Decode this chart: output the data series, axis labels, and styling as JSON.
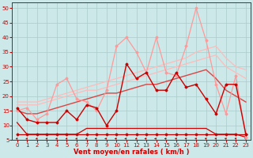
{
  "bg_color": "#cce8e8",
  "grid_color": "#aacccc",
  "xlabel": "Vent moyen/en rafales ( km/h )",
  "xlabel_color": "#cc0000",
  "xlabel_fontsize": 6.0,
  "tick_color": "#cc0000",
  "tick_fontsize": 5.0,
  "ylim": [
    5,
    52
  ],
  "xlim": [
    -0.5,
    23.5
  ],
  "yticks": [
    5,
    10,
    15,
    20,
    25,
    30,
    35,
    40,
    45,
    50
  ],
  "xticks": [
    0,
    1,
    2,
    3,
    4,
    5,
    6,
    7,
    8,
    9,
    10,
    11,
    12,
    13,
    14,
    15,
    16,
    17,
    18,
    19,
    20,
    21,
    22,
    23
  ],
  "y_min": [
    7,
    7,
    7,
    7,
    7,
    7,
    7,
    7,
    7,
    7,
    7,
    7,
    7,
    7,
    7,
    7,
    7,
    7,
    7,
    7,
    7,
    7,
    7,
    7
  ],
  "y_mean": [
    11,
    7,
    7,
    7,
    7,
    7,
    7,
    9,
    9,
    9,
    9,
    9,
    9,
    9,
    9,
    9,
    9,
    9,
    9,
    9,
    7,
    7,
    7,
    6
  ],
  "y_dark_spiky": [
    16,
    12,
    11,
    11,
    11,
    15,
    12,
    17,
    16,
    10,
    15,
    31,
    26,
    28,
    22,
    22,
    28,
    23,
    24,
    19,
    14,
    24,
    24,
    7
  ],
  "y_mid_trend": [
    15,
    14,
    14,
    15,
    16,
    17,
    18,
    19,
    20,
    21,
    21,
    22,
    23,
    24,
    24,
    25,
    26,
    27,
    28,
    29,
    26,
    22,
    20,
    18
  ],
  "y_light_spiky": [
    15,
    16,
    12,
    14,
    24,
    26,
    19,
    18,
    15,
    22,
    37,
    40,
    35,
    28,
    40,
    28,
    27,
    37,
    50,
    39,
    24,
    14,
    27,
    6
  ],
  "y_trend1": [
    17,
    17,
    17,
    18,
    19,
    20,
    21,
    22,
    22,
    23,
    24,
    25,
    26,
    27,
    28,
    29,
    30,
    31,
    32,
    33,
    34,
    30,
    28,
    26
  ],
  "y_trend2": [
    18,
    18,
    18,
    19,
    20,
    21,
    22,
    23,
    24,
    25,
    26,
    27,
    28,
    29,
    30,
    31,
    32,
    33,
    35,
    36,
    37,
    33,
    30,
    29
  ],
  "color_dark": "#cc0000",
  "color_mid": "#dd4444",
  "color_light": "#ff9999",
  "color_trend": "#ffbbbb",
  "wind_dir_y": 5.5
}
